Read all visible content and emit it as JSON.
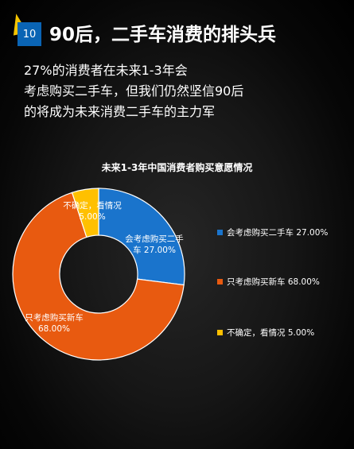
{
  "header": {
    "page_number": "10",
    "title": "90后，二手车消费的排头兵"
  },
  "subtitle": "27%的消费者在未来1-3年会考虑购买二手车，但我们仍然坚信90后的将成为未来消费二手车的主力军",
  "colors": {
    "badge_blue": "#0a64b4",
    "badge_yellow": "#f5c400",
    "slice_used": "#1a74cc",
    "slice_new": "#e85a10",
    "slice_unsure": "#ffc000"
  },
  "chart_data": {
    "type": "pie",
    "donut": true,
    "title": "未来1-3年中国消费者购买意愿情况",
    "legend_position": "right",
    "series": [
      {
        "name": "会考虑购买二手车",
        "value": 27.0,
        "value_label": "27.00%",
        "color": "#1a74cc"
      },
      {
        "name": "只考虑购买新车",
        "value": 68.0,
        "value_label": "68.00%",
        "color": "#e85a10"
      },
      {
        "name": "不确定，看情况",
        "value": 5.0,
        "value_label": "5.00%",
        "color": "#ffc000"
      }
    ],
    "slice_labels": [
      {
        "lines": [
          "会考虑购买二手",
          "车  27.00%"
        ]
      },
      {
        "lines": [
          "只考虑购买新车",
          "68.00%"
        ]
      },
      {
        "lines": [
          "不确定，看情况",
          "5.00%"
        ]
      }
    ],
    "legend": [
      "会考虑购买二手车  27.00%",
      "只考虑购买新车  68.00%",
      "不确定，看情况  5.00%"
    ]
  }
}
